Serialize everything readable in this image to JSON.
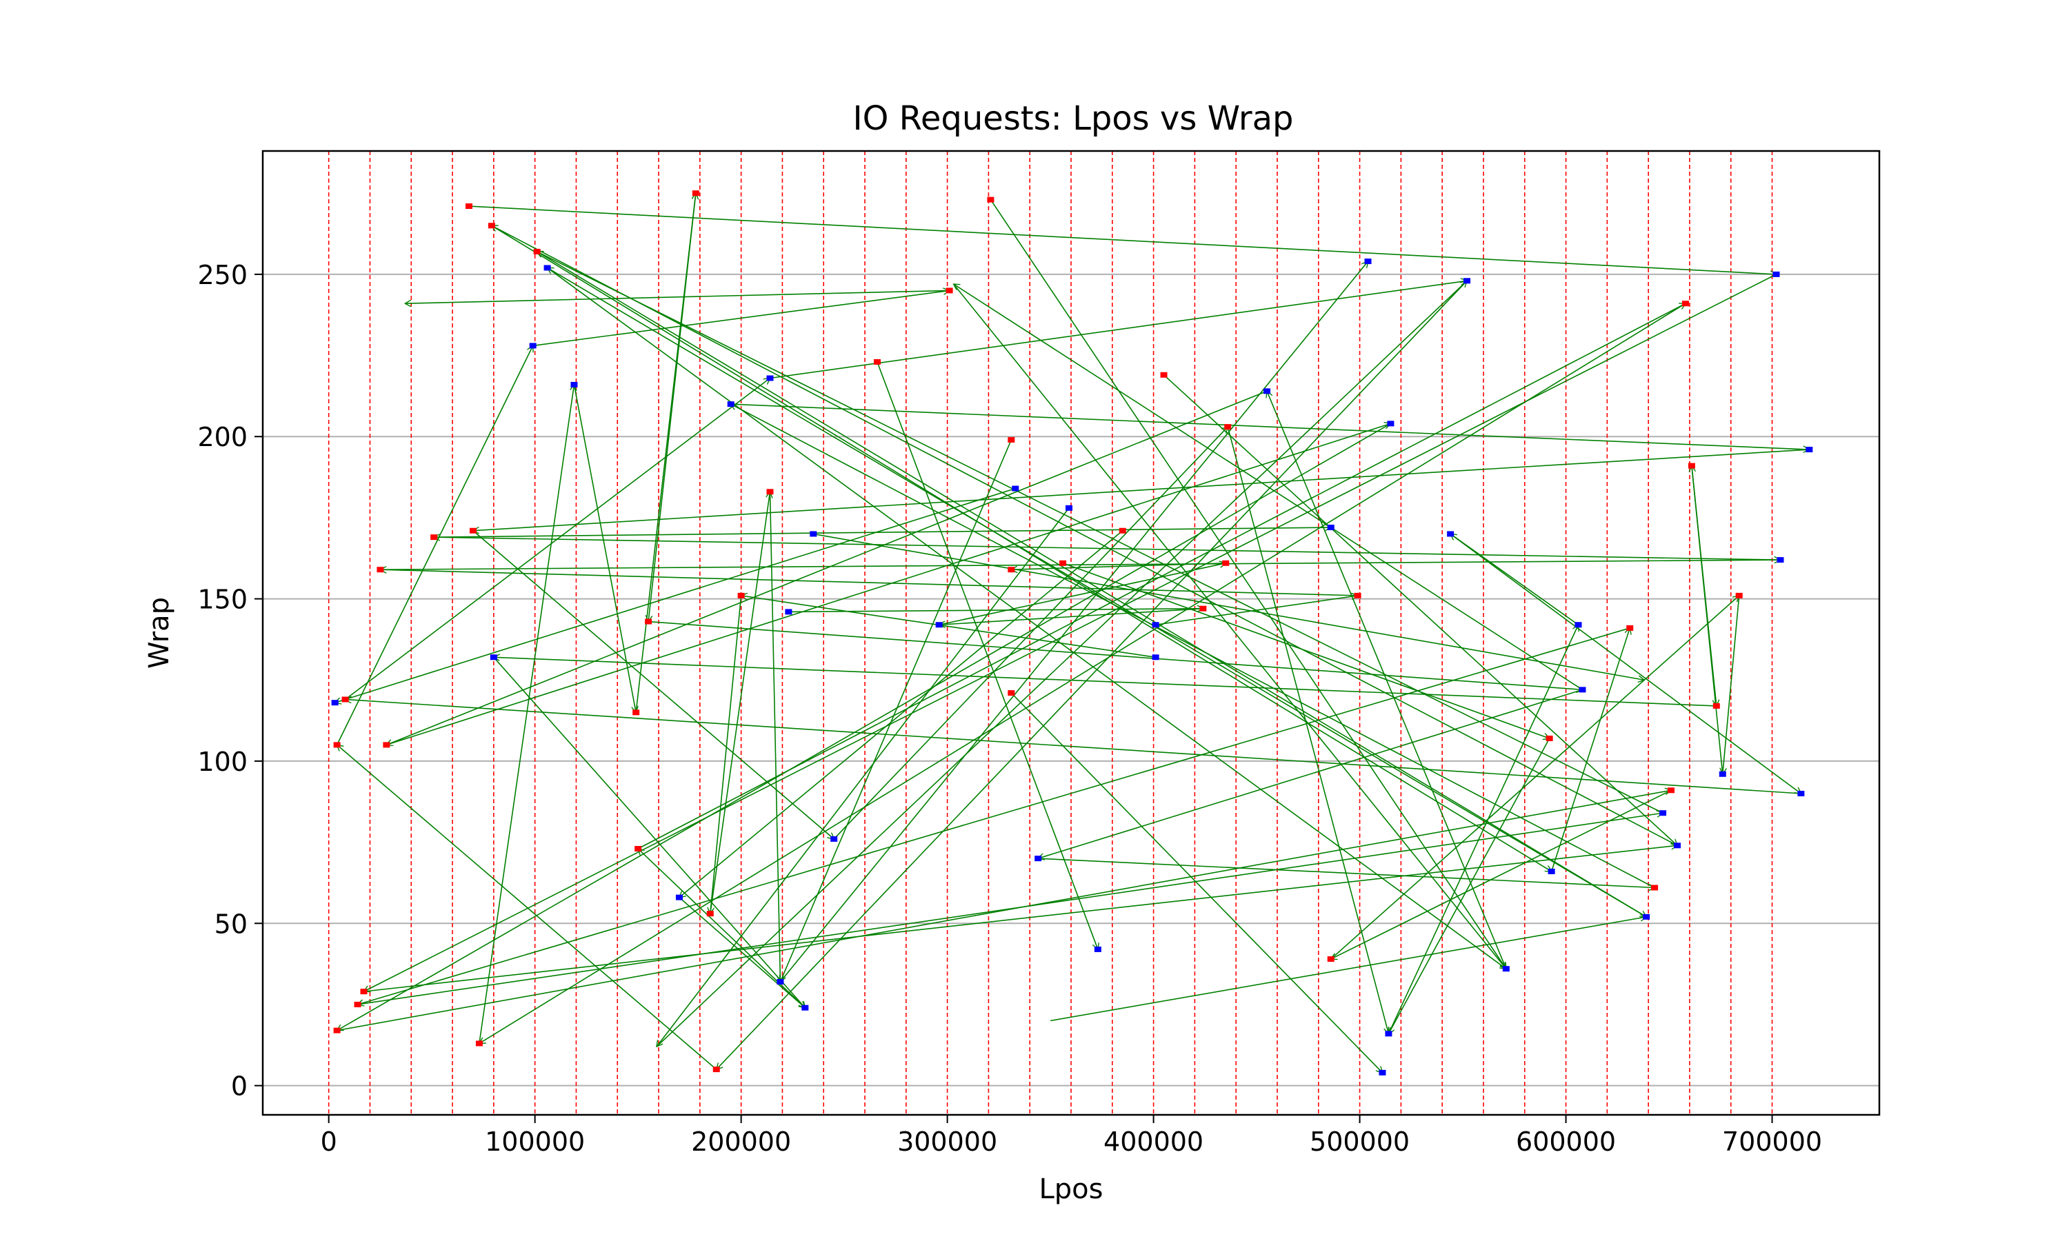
{
  "chart_data": {
    "type": "scatter",
    "title": "IO Requests: Lpos vs Wrap",
    "xlabel": "Lpos",
    "ylabel": "Wrap",
    "xlim": [
      -32000,
      752000
    ],
    "ylim": [
      -9,
      288
    ],
    "xticks": [
      0,
      100000,
      200000,
      300000,
      400000,
      500000,
      600000,
      700000
    ],
    "xtick_labels": [
      "0",
      "100000",
      "200000",
      "300000",
      "400000",
      "500000",
      "600000",
      "700000"
    ],
    "yticks": [
      0,
      50,
      100,
      150,
      200,
      250
    ],
    "ytick_labels": [
      "0",
      "50",
      "100",
      "150",
      "200",
      "250"
    ],
    "grid": "horizontal",
    "band_lines": [
      0,
      20000,
      40000,
      60000,
      80000,
      100000,
      120000,
      140000,
      160000,
      180000,
      200000,
      220000,
      240000,
      260000,
      280000,
      300000,
      320000,
      340000,
      360000,
      380000,
      400000,
      420000,
      440000,
      460000,
      480000,
      500000,
      520000,
      540000,
      560000,
      580000,
      600000,
      620000,
      640000,
      660000,
      680000,
      700000
    ],
    "colors": {
      "red_marker": "#ff0000",
      "blue_marker": "#0000ff",
      "arrow": "#008000",
      "band": "#ff0000",
      "grid": "#b0b0b0"
    },
    "red_points": [
      [
        68000,
        271
      ],
      [
        79000,
        265
      ],
      [
        101000,
        257
      ],
      [
        178000,
        275
      ],
      [
        321000,
        273
      ],
      [
        301000,
        245
      ],
      [
        658000,
        241
      ],
      [
        405000,
        219
      ],
      [
        266000,
        223
      ],
      [
        436000,
        203
      ],
      [
        331000,
        199
      ],
      [
        51000,
        169
      ],
      [
        70000,
        171
      ],
      [
        25000,
        159
      ],
      [
        214000,
        183
      ],
      [
        385000,
        171
      ],
      [
        356000,
        161
      ],
      [
        331000,
        159
      ],
      [
        435000,
        161
      ],
      [
        155000,
        143
      ],
      [
        200000,
        151
      ],
      [
        424000,
        147
      ],
      [
        499000,
        151
      ],
      [
        661000,
        191
      ],
      [
        684000,
        151
      ],
      [
        631000,
        141
      ],
      [
        673000,
        117
      ],
      [
        8000,
        119
      ],
      [
        4000,
        105
      ],
      [
        28000,
        105
      ],
      [
        149000,
        115
      ],
      [
        331000,
        121
      ],
      [
        592000,
        107
      ],
      [
        651000,
        91
      ],
      [
        643000,
        61
      ],
      [
        150000,
        73
      ],
      [
        185000,
        53
      ],
      [
        486000,
        39
      ],
      [
        17000,
        29
      ],
      [
        14000,
        25
      ],
      [
        4000,
        17
      ],
      [
        73000,
        13
      ],
      [
        188000,
        5
      ]
    ],
    "blue_points": [
      [
        504000,
        254
      ],
      [
        552000,
        248
      ],
      [
        702000,
        250
      ],
      [
        718000,
        196
      ],
      [
        106000,
        252
      ],
      [
        99000,
        228
      ],
      [
        119000,
        216
      ],
      [
        195000,
        210
      ],
      [
        214000,
        218
      ],
      [
        455000,
        214
      ],
      [
        515000,
        204
      ],
      [
        333000,
        184
      ],
      [
        359000,
        178
      ],
      [
        235000,
        170
      ],
      [
        486000,
        172
      ],
      [
        544000,
        170
      ],
      [
        704000,
        162
      ],
      [
        223000,
        146
      ],
      [
        296000,
        142
      ],
      [
        401000,
        142
      ],
      [
        401000,
        132
      ],
      [
        80000,
        132
      ],
      [
        606000,
        142
      ],
      [
        608000,
        122
      ],
      [
        3000,
        118
      ],
      [
        676000,
        96
      ],
      [
        714000,
        90
      ],
      [
        647000,
        84
      ],
      [
        654000,
        74
      ],
      [
        593000,
        66
      ],
      [
        639000,
        52
      ],
      [
        344000,
        70
      ],
      [
        245000,
        76
      ],
      [
        170000,
        58
      ],
      [
        219000,
        32
      ],
      [
        231000,
        24
      ],
      [
        373000,
        42
      ],
      [
        571000,
        36
      ],
      [
        514000,
        16
      ],
      [
        511000,
        4
      ]
    ],
    "arrows": [
      [
        68000,
        271,
        702000,
        250
      ],
      [
        702000,
        250,
        17000,
        29
      ],
      [
        17000,
        29,
        654000,
        74
      ],
      [
        654000,
        74,
        79000,
        265
      ],
      [
        79000,
        265,
        593000,
        66
      ],
      [
        593000,
        66,
        631000,
        141
      ],
      [
        631000,
        141,
        14000,
        25
      ],
      [
        14000,
        25,
        647000,
        84
      ],
      [
        647000,
        84,
        101000,
        257
      ],
      [
        101000,
        257,
        639000,
        52
      ],
      [
        639000,
        52,
        106000,
        252
      ],
      [
        106000,
        252,
        571000,
        36
      ],
      [
        571000,
        36,
        455000,
        214
      ],
      [
        455000,
        214,
        28000,
        105
      ],
      [
        28000,
        105,
        515000,
        204
      ],
      [
        515000,
        204,
        4000,
        17
      ],
      [
        4000,
        17,
        651000,
        91
      ],
      [
        651000,
        91,
        486000,
        39
      ],
      [
        486000,
        39,
        684000,
        151
      ],
      [
        684000,
        151,
        676000,
        96
      ],
      [
        676000,
        96,
        661000,
        191
      ],
      [
        661000,
        191,
        673000,
        117
      ],
      [
        673000,
        117,
        80000,
        132
      ],
      [
        80000,
        132,
        231000,
        24
      ],
      [
        231000,
        24,
        150000,
        73
      ],
      [
        150000,
        73,
        658000,
        241
      ],
      [
        658000,
        241,
        73000,
        13
      ],
      [
        73000,
        13,
        119000,
        216
      ],
      [
        119000,
        216,
        149000,
        115
      ],
      [
        149000,
        115,
        178000,
        275
      ],
      [
        178000,
        275,
        155000,
        143
      ],
      [
        155000,
        143,
        608000,
        122
      ],
      [
        608000,
        122,
        344000,
        70
      ],
      [
        344000,
        70,
        643000,
        61
      ],
      [
        643000,
        61,
        195000,
        210
      ],
      [
        195000,
        210,
        718000,
        196
      ],
      [
        718000,
        196,
        70000,
        171
      ],
      [
        70000,
        171,
        245000,
        76
      ],
      [
        245000,
        76,
        436000,
        203
      ],
      [
        436000,
        203,
        514000,
        16
      ],
      [
        514000,
        16,
        606000,
        142
      ],
      [
        606000,
        142,
        544000,
        170
      ],
      [
        544000,
        170,
        714000,
        90
      ],
      [
        714000,
        90,
        8000,
        119
      ],
      [
        8000,
        119,
        214000,
        218
      ],
      [
        214000,
        218,
        552000,
        248
      ],
      [
        552000,
        248,
        188000,
        5
      ],
      [
        188000,
        5,
        4000,
        105
      ],
      [
        4000,
        105,
        99000,
        228
      ],
      [
        99000,
        228,
        301000,
        245
      ],
      [
        301000,
        245,
        37000,
        241
      ],
      [
        333000,
        184,
        3000,
        118
      ],
      [
        331000,
        199,
        219000,
        32
      ],
      [
        219000,
        32,
        504000,
        254
      ],
      [
        401000,
        142,
        499000,
        151
      ],
      [
        499000,
        151,
        25000,
        159
      ],
      [
        25000,
        159,
        704000,
        162
      ],
      [
        704000,
        162,
        51000,
        169
      ],
      [
        51000,
        169,
        486000,
        172
      ],
      [
        223000,
        146,
        424000,
        147
      ],
      [
        424000,
        147,
        296000,
        142
      ],
      [
        296000,
        142,
        435000,
        161
      ],
      [
        435000,
        161,
        331000,
        159
      ],
      [
        356000,
        161,
        592000,
        107
      ],
      [
        592000,
        107,
        514000,
        16
      ],
      [
        385000,
        171,
        170000,
        58
      ],
      [
        170000,
        58,
        231000,
        24
      ],
      [
        266000,
        223,
        373000,
        42
      ],
      [
        321000,
        273,
        571000,
        36
      ],
      [
        405000,
        219,
        654000,
        74
      ],
      [
        401000,
        132,
        200000,
        151
      ],
      [
        200000,
        151,
        185000,
        53
      ],
      [
        185000,
        53,
        214000,
        183
      ],
      [
        214000,
        183,
        219000,
        32
      ],
      [
        359000,
        178,
        159000,
        12
      ],
      [
        159000,
        12,
        552000,
        248
      ],
      [
        350000,
        20,
        639000,
        52
      ],
      [
        331000,
        121,
        511000,
        4
      ],
      [
        235000,
        170,
        638000,
        125
      ],
      [
        608000,
        122,
        303000,
        247
      ],
      [
        303000,
        247,
        571000,
        36
      ]
    ]
  }
}
